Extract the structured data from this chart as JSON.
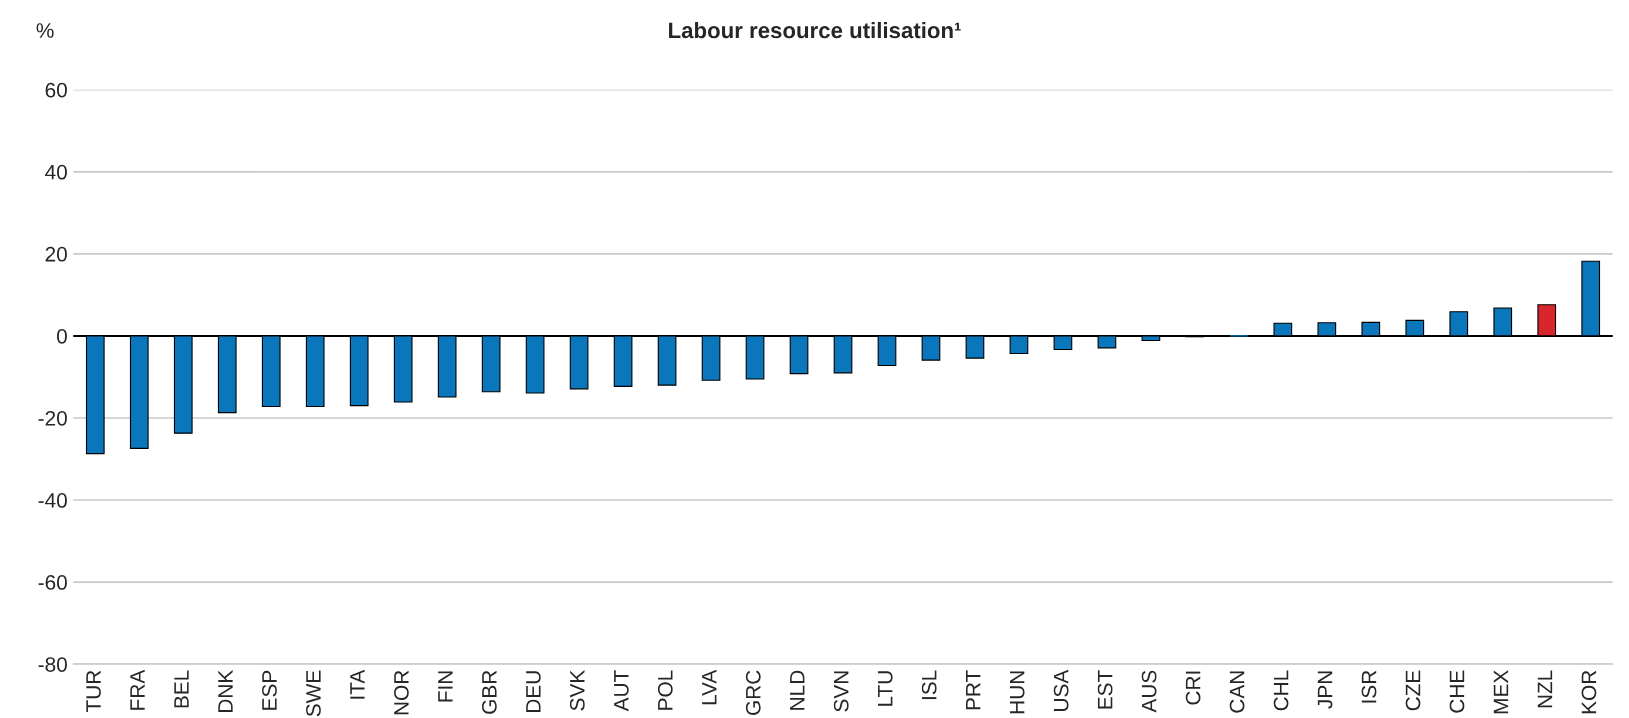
{
  "chart_data": {
    "type": "bar",
    "title": "Labour resource utilisation¹",
    "ylabel": "%",
    "categories": [
      "TUR",
      "FRA",
      "BEL",
      "DNK",
      "ESP",
      "SWE",
      "ITA",
      "NOR",
      "FIN",
      "GBR",
      "DEU",
      "SVK",
      "AUT",
      "POL",
      "LVA",
      "GRC",
      "NLD",
      "SVN",
      "LTU",
      "ISL",
      "PRT",
      "HUN",
      "USA",
      "EST",
      "AUS",
      "CRI",
      "CAN",
      "CHL",
      "JPN",
      "ISR",
      "CZE",
      "CHE",
      "MEX",
      "NZL",
      "KOR"
    ],
    "values": [
      -28.7,
      -27.4,
      -23.7,
      -18.7,
      -17.2,
      -17.2,
      -17.0,
      -16.1,
      -14.9,
      -13.6,
      -13.9,
      -12.9,
      -12.3,
      -12.0,
      -10.8,
      -10.5,
      -9.2,
      -9.0,
      -7.2,
      -5.9,
      -5.4,
      -4.3,
      -3.3,
      -2.9,
      -1.1,
      -0.2,
      0,
      3.1,
      3.2,
      3.3,
      3.8,
      5.9,
      6.8,
      7.6,
      18.2
    ],
    "colors": [
      "#0a77bd",
      "#0a77bd",
      "#0a77bd",
      "#0a77bd",
      "#0a77bd",
      "#0a77bd",
      "#0a77bd",
      "#0a77bd",
      "#0a77bd",
      "#0a77bd",
      "#0a77bd",
      "#0a77bd",
      "#0a77bd",
      "#0a77bd",
      "#0a77bd",
      "#0a77bd",
      "#0a77bd",
      "#0a77bd",
      "#0a77bd",
      "#0a77bd",
      "#0a77bd",
      "#0a77bd",
      "#0a77bd",
      "#0a77bd",
      "#0a77bd",
      "#0a77bd",
      "#0a77bd",
      "#0a77bd",
      "#0a77bd",
      "#0a77bd",
      "#0a77bd",
      "#0a77bd",
      "#0a77bd",
      "#d9262c",
      "#0a77bd"
    ],
    "ylim": [
      -80,
      60
    ],
    "yticks": [
      {
        "value": -80,
        "label": "-80"
      },
      {
        "value": -60,
        "label": "-60"
      },
      {
        "value": -40,
        "label": "-40"
      },
      {
        "value": -20,
        "label": "-20"
      },
      0,
      20,
      40,
      60
    ],
    "grid": "y"
  }
}
